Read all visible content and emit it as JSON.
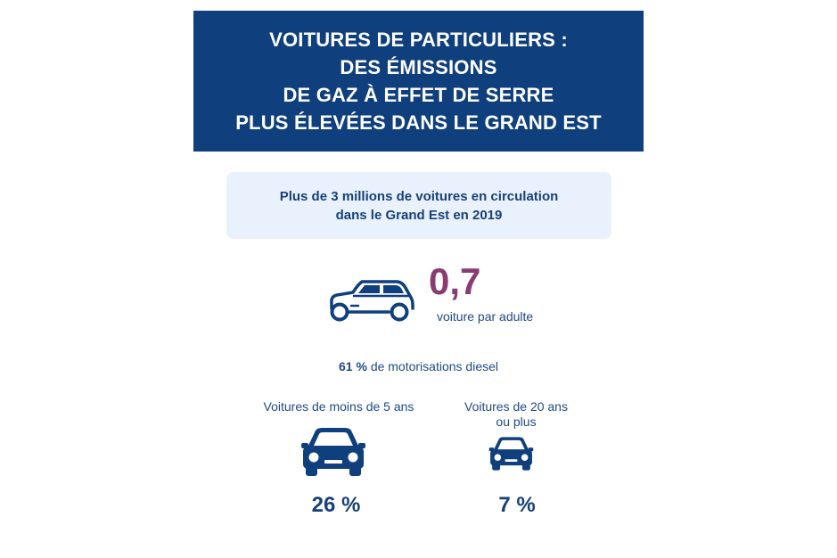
{
  "title": {
    "lines": [
      "VOITURES DE PARTICULIERS :",
      "DES ÉMISSIONS",
      "DE GAZ À EFFET DE SERRE",
      "PLUS ÉLEVÉES DANS LE GRAND EST"
    ]
  },
  "info_box": {
    "lines": [
      "Plus de 3 millions de voitures en circulation",
      "dans le Grand Est en 2019"
    ]
  },
  "cars_per_adult": {
    "value": "0,7",
    "caption": "voiture par adulte",
    "icon": "car-side-icon"
  },
  "diesel": {
    "percent": "61 %",
    "text": "de motorisations diesel"
  },
  "stats": [
    {
      "label_lines": [
        "Voitures de moins de 5 ans"
      ],
      "value": "26 %",
      "icon": "car-front-icon"
    },
    {
      "label_lines": [
        "Voitures de 20 ans",
        "ou plus"
      ],
      "value": "7 %",
      "icon": "car-front-icon"
    }
  ],
  "colors": {
    "banner": "#0f3f7d",
    "info_box_bg": "#e9f2fc",
    "text_blue": "#1f4a86",
    "accent_purple": "#8a3b73"
  }
}
